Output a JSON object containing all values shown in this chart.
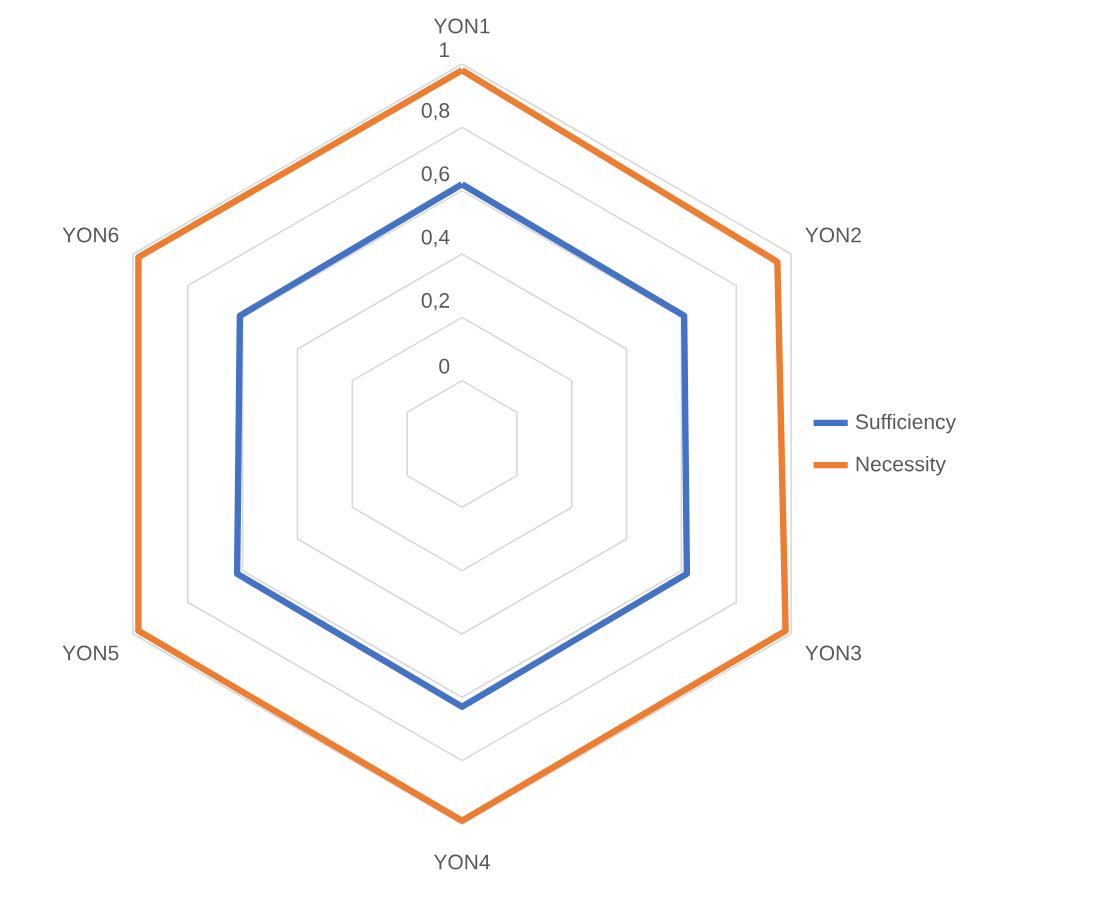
{
  "chart_data": {
    "type": "radar",
    "categories": [
      "YON1",
      "YON2",
      "YON3",
      "YON4",
      "YON5",
      "YON6"
    ],
    "series": [
      {
        "name": "Sufficiency",
        "color": "#4472c4",
        "values": [
          0.62,
          0.61,
          0.62,
          0.63,
          0.62,
          0.61
        ]
      },
      {
        "name": "Necessity",
        "color": "#ed7d31",
        "values": [
          0.98,
          0.95,
          0.98,
          0.99,
          0.98,
          0.98
        ]
      }
    ],
    "ylim": [
      -0.2,
      1
    ],
    "yticks": [
      0,
      {
        "value": 0.2,
        "label": "0,2"
      },
      {
        "value": 0.4,
        "label": "0,4"
      },
      {
        "value": 0.6,
        "label": "0,6"
      },
      {
        "value": 0.8,
        "label": "0,8"
      },
      1
    ],
    "grid": true,
    "legend": "right"
  }
}
